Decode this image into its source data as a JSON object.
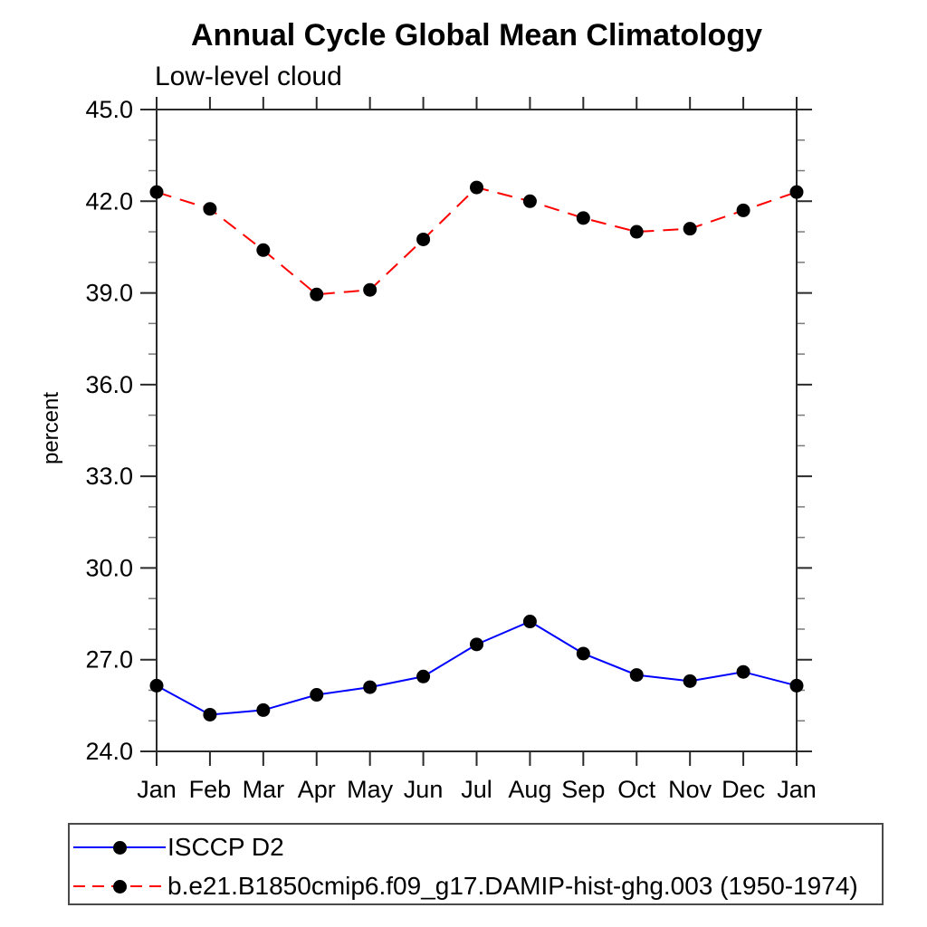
{
  "chart_data": {
    "type": "line",
    "title": "Annual Cycle Global Mean Climatology",
    "subtitle": "Low-level cloud",
    "ylabel": "percent",
    "categories": [
      "Jan",
      "Feb",
      "Mar",
      "Apr",
      "May",
      "Jun",
      "Jul",
      "Aug",
      "Sep",
      "Oct",
      "Nov",
      "Dec",
      "Jan"
    ],
    "ylim": [
      24.0,
      45.0
    ],
    "ytick_interval": 3.0,
    "yminor_interval": 1.0,
    "ytick_labels": [
      "24.0",
      "27.0",
      "30.0",
      "33.0",
      "36.0",
      "39.0",
      "42.0",
      "45.0"
    ],
    "grid": false,
    "legend_position": "bottom-left box",
    "marker": {
      "shape": "circle",
      "color": "#000000"
    },
    "axis_color": "#2a2a2a",
    "series": [
      {
        "name": "ISCCP D2",
        "color": "#0000ff",
        "line_style": "solid",
        "values": [
          26.15,
          25.2,
          25.35,
          25.85,
          26.1,
          26.45,
          27.5,
          28.25,
          27.2,
          26.5,
          26.3,
          26.6,
          26.15
        ]
      },
      {
        "name": "b.e21.B1850cmip6.f09_g17.DAMIP-hist-ghg.003 (1950-1974)",
        "color": "#ff0000",
        "line_style": "dashed",
        "values": [
          42.3,
          41.75,
          40.4,
          38.95,
          39.1,
          40.75,
          42.45,
          42.0,
          41.45,
          41.0,
          41.1,
          41.7,
          42.3
        ]
      }
    ]
  }
}
